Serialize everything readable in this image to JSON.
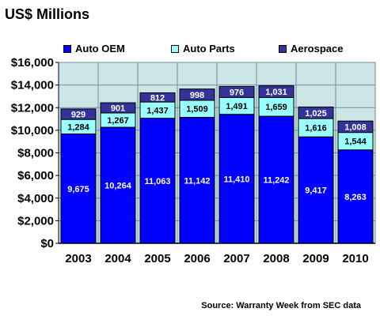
{
  "chart_data": {
    "type": "bar",
    "stacked": true,
    "title": "US$ Millions",
    "categories": [
      "2003",
      "2004",
      "2005",
      "2006",
      "2007",
      "2008",
      "2009",
      "2010"
    ],
    "series": [
      {
        "name": "Auto OEM",
        "color": "#0000ff",
        "values": [
          9675,
          10264,
          11063,
          11142,
          11410,
          11242,
          9417,
          8263
        ]
      },
      {
        "name": "Auto Parts",
        "color": "#99ffff",
        "values": [
          1284,
          1267,
          1437,
          1509,
          1491,
          1659,
          1616,
          1544
        ]
      },
      {
        "name": "Aerospace",
        "color": "#333399",
        "values": [
          929,
          901,
          812,
          998,
          976,
          1031,
          1025,
          1008
        ]
      }
    ],
    "ylim": [
      0,
      16000
    ],
    "yticks": [
      0,
      2000,
      4000,
      6000,
      8000,
      10000,
      12000,
      14000,
      16000
    ],
    "ytick_labels": [
      "$0",
      "$2,000",
      "$4,000",
      "$6,000",
      "$8,000",
      "$10,000",
      "$12,000",
      "$14,000",
      "$16,000"
    ],
    "grid": true,
    "legend_position": "top",
    "plot_background": "#cce6e6",
    "source": "Source: Warranty Week from SEC data"
  }
}
